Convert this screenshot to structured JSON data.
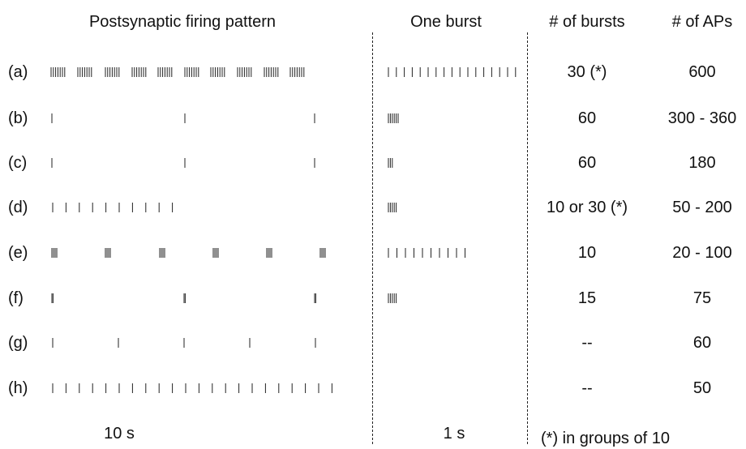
{
  "headers": {
    "pattern": "Postsynaptic firing pattern",
    "burst": "One burst",
    "n_bursts": "# of bursts",
    "n_aps": "# of APs"
  },
  "rows": [
    {
      "label": "(a)",
      "bursts": "30 (*)",
      "aps": "600",
      "pattern": {
        "type": "burst_groups",
        "starts": [
          63,
          96,
          130,
          163,
          195,
          228,
          260,
          293,
          326,
          358
        ],
        "spikes": 7,
        "spacing": 2.8
      },
      "burst": {
        "spikes": 17,
        "spacing": 9.8
      }
    },
    {
      "label": "(b)",
      "bursts": "60",
      "aps": "300 - 360",
      "pattern": {
        "type": "burst_groups",
        "starts": [
          64,
          228,
          388
        ],
        "spikes": 1,
        "spacing": 2.5
      },
      "burst": {
        "spikes": 6,
        "spacing": 2.4
      }
    },
    {
      "label": "(c)",
      "bursts": "60",
      "aps": "180",
      "pattern": {
        "type": "burst_groups",
        "starts": [
          64,
          228,
          388
        ],
        "spikes": 1,
        "spacing": 2.5
      },
      "burst": {
        "spikes": 3,
        "spacing": 2.4
      }
    },
    {
      "label": "(d)",
      "bursts": "10 or 30 (*)",
      "aps": "50 - 200",
      "pattern": {
        "type": "spikes",
        "start": 65,
        "count": 10,
        "spacing": 16.4
      },
      "burst": {
        "spikes": 5,
        "spacing": 2.4
      }
    },
    {
      "label": "(e)",
      "bursts": "10",
      "aps": "20 - 100",
      "pattern": {
        "type": "burst_groups",
        "starts": [
          64,
          130,
          197,
          263,
          329,
          395
        ],
        "spikes": 4,
        "spacing": 2.0
      },
      "burst": {
        "spikes": 10,
        "spacing": 10.5
      }
    },
    {
      "label": "(f)",
      "bursts": "15",
      "aps": "75",
      "pattern": {
        "type": "burst_groups",
        "starts": [
          64,
          227,
          388
        ],
        "spikes": 2,
        "spacing": 1.4
      },
      "burst": {
        "spikes": 5,
        "spacing": 2.4
      }
    },
    {
      "label": "(g)",
      "bursts": "--",
      "aps": "60",
      "pattern": {
        "type": "spikes",
        "start": 65,
        "count": 5,
        "spacing": 81
      },
      "burst": null
    },
    {
      "label": "(h)",
      "bursts": "--",
      "aps": "50",
      "pattern": {
        "type": "spikes",
        "start": 65,
        "count": 22,
        "spacing": 16.4
      },
      "burst": null
    }
  ],
  "scale": {
    "pattern": "10 s",
    "burst": "1 s"
  },
  "footnote": "(*) in groups of 10"
}
